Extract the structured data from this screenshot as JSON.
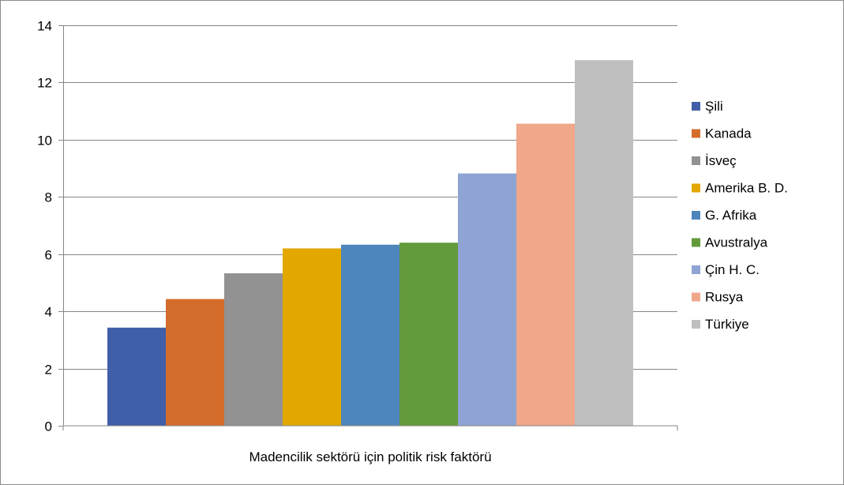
{
  "chart_data": {
    "type": "bar",
    "title": "",
    "xlabel": "Madencilik sektörü için politik risk faktörü",
    "ylabel": "",
    "ylim": [
      0,
      14
    ],
    "yticks": [
      0,
      2,
      4,
      6,
      8,
      10,
      12,
      14
    ],
    "grid": true,
    "legend_position": "right",
    "categories": [
      "Madencilik sektörü için politik risk faktörü"
    ],
    "series": [
      {
        "name": "Şili",
        "values": [
          3.43
        ],
        "color": "#3f5fa8"
      },
      {
        "name": "Kanada",
        "values": [
          4.43
        ],
        "color": "#d46c2c"
      },
      {
        "name": "İsveç",
        "values": [
          5.33
        ],
        "color": "#929292"
      },
      {
        "name": "Amerika B. D.",
        "values": [
          6.2
        ],
        "color": "#e2a800"
      },
      {
        "name": "G. Afrika",
        "values": [
          6.33
        ],
        "color": "#4d86bc"
      },
      {
        "name": "Avustralya",
        "values": [
          6.4
        ],
        "color": "#639a3c"
      },
      {
        "name": "Çin H. C.",
        "values": [
          8.82
        ],
        "color": "#8fa3d4"
      },
      {
        "name": "Rusya",
        "values": [
          10.56
        ],
        "color": "#f0a78a"
      },
      {
        "name": "Türkiye",
        "values": [
          12.78
        ],
        "color": "#bfbfbf"
      }
    ]
  }
}
